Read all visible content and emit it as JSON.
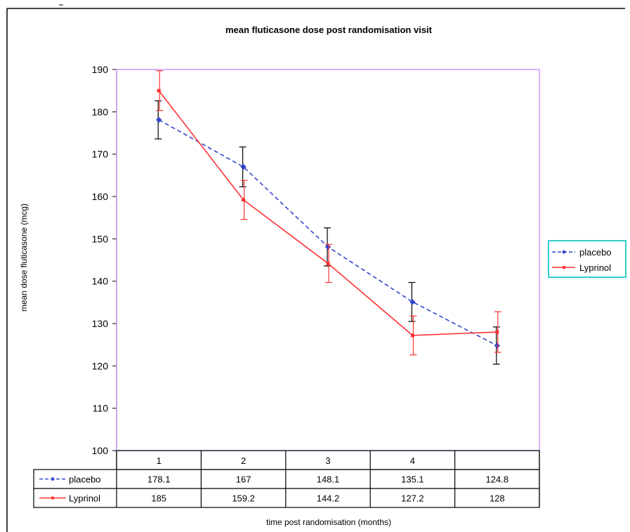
{
  "chart_data": {
    "type": "line",
    "title": "mean fluticasone dose post randomisation visit",
    "xlabel": "time post randomisation (months)",
    "ylabel": "mean dose fluticasone (mcg)",
    "ylim": [
      100,
      190
    ],
    "yticks": [
      100,
      110,
      120,
      130,
      140,
      150,
      160,
      170,
      180,
      190
    ],
    "categories": [
      "1",
      "2",
      "3",
      "4",
      ""
    ],
    "grid": false,
    "legend_position": "right",
    "series": [
      {
        "name": "placebo",
        "values": [
          178.1,
          167,
          148.1,
          135.1,
          124.8
        ],
        "table_values": [
          "178.1",
          "167",
          "148.1",
          "135.1",
          "124.8"
        ],
        "error": [
          4.5,
          4.7,
          4.5,
          4.6,
          4.4
        ],
        "color": "#3344cc",
        "line_style": "dashed",
        "marker": "diamond"
      },
      {
        "name": "Lyprinol",
        "values": [
          185,
          159.2,
          144.2,
          127.2,
          128
        ],
        "table_values": [
          "185",
          "159.2",
          "144.2",
          "127.2",
          "128"
        ],
        "error": [
          4.7,
          4.6,
          4.5,
          4.6,
          4.8
        ],
        "color": "#ff3333",
        "line_style": "solid",
        "marker": "square"
      }
    ]
  },
  "colors": {
    "plot_border": "#cc99ff",
    "legend_border": "#33cccc",
    "error_bar": "#000000"
  }
}
